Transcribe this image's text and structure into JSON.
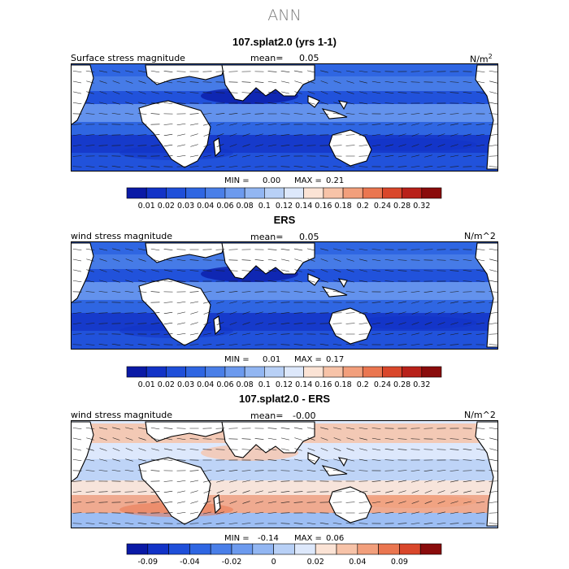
{
  "figure": {
    "title": "ANN"
  },
  "colors": {
    "land": "#ffffff",
    "coast": "#000000"
  },
  "chart_data": [
    {
      "type": "heatmap",
      "title": "107.splat2.0 (yrs 1-1)",
      "left_label": "Surface stress magnitude",
      "mean_label": "mean=",
      "mean_value": "0.05",
      "units": "N/m",
      "units_sup": "2",
      "min_label": "MIN =",
      "min_value": "0.00",
      "max_label": "MAX =",
      "max_value": "0.21",
      "colorbar": {
        "ticks": [
          "0.01",
          "0.02",
          "0.03",
          "0.04",
          "0.06",
          "0.08",
          "0.1",
          "0.12",
          "0.14",
          "0.16",
          "0.18",
          "0.2",
          "0.24",
          "0.28",
          "0.32"
        ],
        "colors": [
          "#0a1aa6",
          "#1233c7",
          "#1f4fd9",
          "#2f66e2",
          "#4a7fe8",
          "#6c9aee",
          "#92b6f2",
          "#b8d0f6",
          "#dde8fb",
          "#fbe3d5",
          "#f7c3a8",
          "#f29f7c",
          "#ea7650",
          "#d9472b",
          "#b8211a",
          "#8a0c0c"
        ]
      }
    },
    {
      "type": "heatmap",
      "title": "ERS",
      "left_label": "wind stress magnitude",
      "mean_label": "mean=",
      "mean_value": "0.05",
      "units": "N/m^2",
      "min_label": "MIN =",
      "min_value": "0.01",
      "max_label": "MAX =",
      "max_value": "0.17",
      "colorbar": {
        "ticks": [
          "0.01",
          "0.02",
          "0.03",
          "0.04",
          "0.06",
          "0.08",
          "0.1",
          "0.12",
          "0.14",
          "0.16",
          "0.18",
          "0.2",
          "0.24",
          "0.28",
          "0.32"
        ],
        "colors": [
          "#0a1aa6",
          "#1233c7",
          "#1f4fd9",
          "#2f66e2",
          "#4a7fe8",
          "#6c9aee",
          "#92b6f2",
          "#b8d0f6",
          "#dde8fb",
          "#fbe3d5",
          "#f7c3a8",
          "#f29f7c",
          "#ea7650",
          "#d9472b",
          "#b8211a",
          "#8a0c0c"
        ]
      }
    },
    {
      "type": "heatmap",
      "title": "107.splat2.0 - ERS",
      "left_label": "wind stress magnitude",
      "mean_label": "mean=",
      "mean_value": "-0.00",
      "units": "N/m^2",
      "min_label": "MIN =",
      "min_value": "-0.14",
      "max_label": "MAX =",
      "max_value": "0.06",
      "colorbar": {
        "ticks": [
          "-0.09",
          "-0.04",
          "-0.02",
          "0",
          "0.02",
          "0.04",
          "0.09"
        ],
        "tick_boundaries": [
          1,
          3,
          5,
          7,
          9,
          11,
          13
        ],
        "colors": [
          "#0a1aa6",
          "#1233c7",
          "#1f4fd9",
          "#2f66e2",
          "#4a7fe8",
          "#6c9aee",
          "#92b6f2",
          "#b8d0f6",
          "#dde8fb",
          "#fbe3d5",
          "#f7c3a8",
          "#f29f7c",
          "#ea7650",
          "#d9472b",
          "#8a0c0c"
        ]
      }
    }
  ]
}
